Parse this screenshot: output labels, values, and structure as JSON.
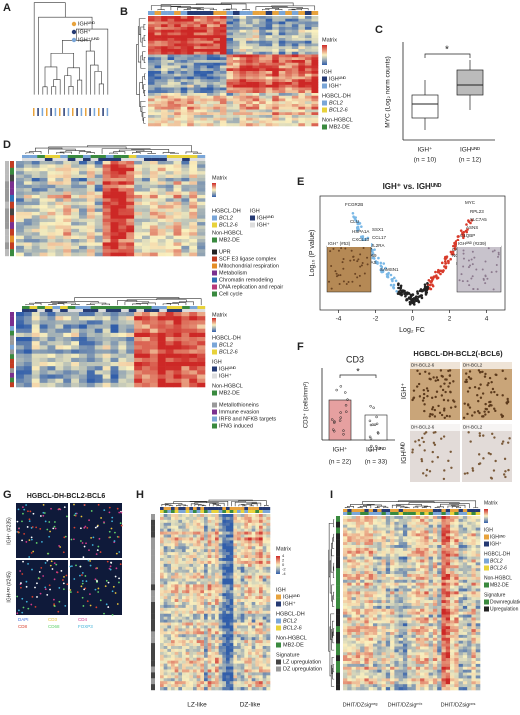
{
  "A": {
    "label": "A",
    "legend": [
      "IGHᵁᴺᴰ",
      "IGH⁺",
      "IGH⁺/ᵁᴺᴰ"
    ]
  },
  "B": {
    "label": "B",
    "legend": [
      "Matrix",
      "IGH",
      "IGHᵁᴺᴰ",
      "IGH⁺",
      "HGBCL-DH",
      "BCL2",
      "BCL2-6",
      "Non-HGBCL",
      "MB2-DE"
    ]
  },
  "C": {
    "label": "C",
    "y_axis": "MYC (Log₂ norm counts)",
    "groups": [
      "IGH⁺",
      "IGHᵁᴺᴰ"
    ],
    "n": [
      "(n = 10)",
      "(n = 12)"
    ],
    "significance": "*"
  },
  "D": {
    "label": "D",
    "top_legend": [
      "Matrix",
      "HGBCL-DH",
      "BCL2",
      "BCL2-6",
      "Non-HGBCL",
      "MB2-DE",
      "IGH",
      "IGHᵁᴺᴰ",
      "IGH⁺"
    ],
    "pathways": [
      "UPR",
      "SCF E3 ligase complex",
      "Mitochondrial respiration",
      "Metabolism",
      "Chromatin remodeling",
      "DNA replication and repair",
      "Cell cycle"
    ],
    "bottom_legend": [
      "Matrix",
      "HGBCL-DH",
      "BCL2",
      "BCL2-6",
      "IGH",
      "IGHᵁᴺᴰ",
      "IGH⁺",
      "Non-HGBCL",
      "MB2-DE"
    ],
    "signatures": [
      "Metallothioneins",
      "Immune evasion",
      "IRF8 and NFKB targets",
      "IFNG induced"
    ]
  },
  "E": {
    "label": "E",
    "title": "IGH⁺ vs. IGHᵁᴺᴰ",
    "y_axis": "Log₁₀ (P value)",
    "x_axis": "Log₂ FC",
    "xlim": [
      -5,
      5
    ],
    "xticks": [
      -4,
      -2,
      0,
      2,
      4
    ],
    "down_genes": [
      "FCGR2B",
      "CLU",
      "HSPA1A",
      "CXCL13",
      "SSX1",
      "CCL17",
      "IL2RA",
      "CCR7",
      "CD69",
      "FAS",
      "SAMSN1"
    ],
    "up_genes": [
      "MYC",
      "RPL23",
      "SLC7A5",
      "ASNS",
      "C1QBP",
      "PPAT",
      "CAD",
      "NOLC1",
      "ID1"
    ],
    "insets": [
      "IGH⁺ (#53)",
      "IGHᵁᴺᴰ (#239)"
    ]
  },
  "F": {
    "label": "F",
    "title": "CD3",
    "y_axis": "CD3⁺ (cells/mm²)",
    "groups": [
      "IGH⁺",
      "IGHᵁᴺᴰ"
    ],
    "n": [
      "(n = 22)",
      "(n = 33)"
    ],
    "significance": "*",
    "image_title": "HGBCL-DH-BCL2(-BCL6)",
    "image_labels": [
      "DH-BCL2-6",
      "DH-BCL2",
      "DH-BCL2-6",
      "DH-BCL2"
    ],
    "rows": [
      "IGH⁺",
      "IGHᵁᴺᴰ"
    ]
  },
  "G": {
    "label": "G",
    "title": "HGBCL-DH-BCL2-BCL6",
    "rows": [
      "IGH⁺ (#235)",
      "IGHᵁᴺᴰ (#245)"
    ],
    "markers": [
      "DAPI",
      "CD3",
      "CD4",
      "CD8",
      "CD68",
      "FOXP3"
    ]
  },
  "H": {
    "label": "H",
    "legend": [
      "Matrix",
      "IGH",
      "IGHᵁᴺᴰ",
      "IGH⁺",
      "HGBCL-DH",
      "BCL2",
      "BCL2-6",
      "Non-HGBCL",
      "MB2-DE",
      "Signature",
      "LZ upregulation",
      "DZ upregulation"
    ],
    "matrix_ticks": [
      4,
      2,
      0,
      -2,
      -4
    ],
    "x_groups": [
      "LZ-like",
      "DZ-like"
    ]
  },
  "I": {
    "label": "I",
    "legend": [
      "Matrix",
      "IGH",
      "IGHᵁᴺᴰ",
      "IGH⁺",
      "HGBCL-DH",
      "BCL2",
      "BCL2-6",
      "Non-HGBCL",
      "MB2-DE",
      "Signature",
      "Downregulation",
      "Upregulation"
    ],
    "x_groups": [
      "DHIT/DZsigⁿᵉᵍ",
      "DHIT/DZsigᵐⁱˣ",
      "DHIT/DZsigᵖᵒˢ"
    ]
  }
}
